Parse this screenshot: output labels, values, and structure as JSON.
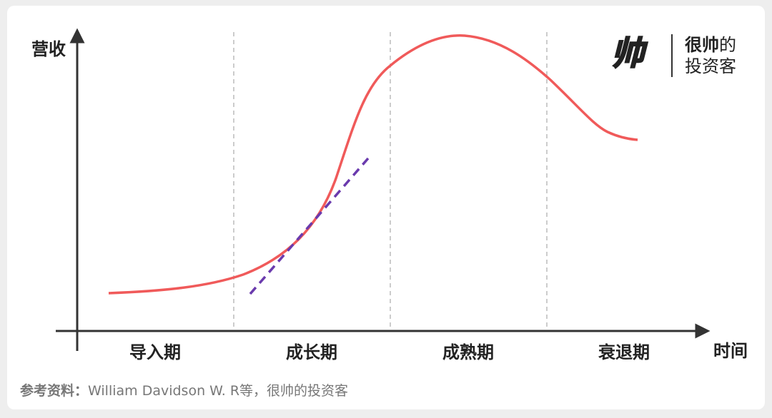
{
  "y_axis_label": "营收",
  "x_axis_label": "时间",
  "stages": [
    "导入期",
    "成长期",
    "成熟期",
    "衰退期"
  ],
  "logo": {
    "mark": "帅",
    "bold": "很帅",
    "regular": "的",
    "line2": "投资客"
  },
  "source": {
    "label": "参考资料：",
    "text": "William Davidson W. R等，很帅的投资客"
  }
}
